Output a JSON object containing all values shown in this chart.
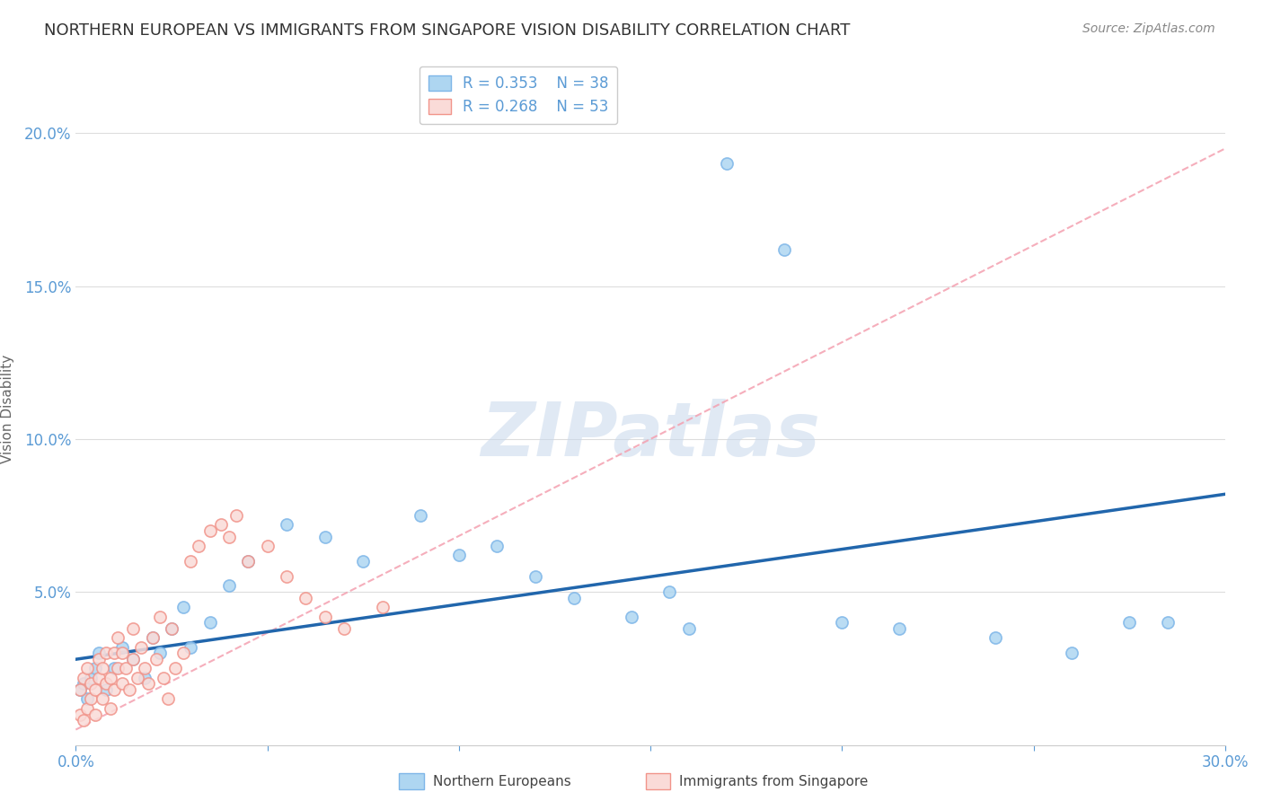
{
  "title": "NORTHERN EUROPEAN VS IMMIGRANTS FROM SINGAPORE VISION DISABILITY CORRELATION CHART",
  "source": "Source: ZipAtlas.com",
  "ylabel": "Vision Disability",
  "xlim": [
    0.0,
    0.3
  ],
  "ylim": [
    0.0,
    0.22
  ],
  "xticks": [
    0.0,
    0.05,
    0.1,
    0.15,
    0.2,
    0.25,
    0.3
  ],
  "yticks": [
    0.0,
    0.05,
    0.1,
    0.15,
    0.2
  ],
  "blue_R": 0.353,
  "blue_N": 38,
  "pink_R": 0.268,
  "pink_N": 53,
  "blue_scatter_color_face": "#AED6F1",
  "blue_scatter_color_edge": "#7EB6E8",
  "pink_scatter_color_face": "#FADBD8",
  "pink_scatter_color_edge": "#F1948A",
  "blue_line_color": "#2166AC",
  "pink_line_color": "#F4A0B0",
  "grid_color": "#DDDDDD",
  "background_color": "#FFFFFF",
  "title_fontsize": 13,
  "axis_label_fontsize": 11,
  "tick_fontsize": 12,
  "legend_fontsize": 12,
  "blue_scatter_x": [
    0.001,
    0.002,
    0.003,
    0.004,
    0.005,
    0.006,
    0.008,
    0.01,
    0.012,
    0.015,
    0.018,
    0.02,
    0.022,
    0.025,
    0.028,
    0.03,
    0.035,
    0.04,
    0.045,
    0.055,
    0.065,
    0.075,
    0.09,
    0.1,
    0.11,
    0.12,
    0.13,
    0.145,
    0.155,
    0.16,
    0.17,
    0.185,
    0.2,
    0.215,
    0.24,
    0.26,
    0.275,
    0.285
  ],
  "blue_scatter_y": [
    0.018,
    0.02,
    0.015,
    0.022,
    0.025,
    0.03,
    0.018,
    0.025,
    0.032,
    0.028,
    0.022,
    0.035,
    0.03,
    0.038,
    0.045,
    0.032,
    0.04,
    0.052,
    0.06,
    0.072,
    0.068,
    0.06,
    0.075,
    0.062,
    0.065,
    0.055,
    0.048,
    0.042,
    0.05,
    0.038,
    0.19,
    0.162,
    0.04,
    0.038,
    0.035,
    0.03,
    0.04,
    0.04
  ],
  "pink_scatter_x": [
    0.001,
    0.001,
    0.002,
    0.002,
    0.003,
    0.003,
    0.004,
    0.004,
    0.005,
    0.005,
    0.006,
    0.006,
    0.007,
    0.007,
    0.008,
    0.008,
    0.009,
    0.009,
    0.01,
    0.01,
    0.011,
    0.011,
    0.012,
    0.012,
    0.013,
    0.014,
    0.015,
    0.015,
    0.016,
    0.017,
    0.018,
    0.019,
    0.02,
    0.021,
    0.022,
    0.023,
    0.024,
    0.025,
    0.026,
    0.028,
    0.03,
    0.032,
    0.035,
    0.038,
    0.04,
    0.042,
    0.045,
    0.05,
    0.055,
    0.06,
    0.065,
    0.07,
    0.08
  ],
  "pink_scatter_y": [
    0.01,
    0.018,
    0.008,
    0.022,
    0.012,
    0.025,
    0.015,
    0.02,
    0.01,
    0.018,
    0.022,
    0.028,
    0.015,
    0.025,
    0.02,
    0.03,
    0.012,
    0.022,
    0.018,
    0.03,
    0.025,
    0.035,
    0.02,
    0.03,
    0.025,
    0.018,
    0.028,
    0.038,
    0.022,
    0.032,
    0.025,
    0.02,
    0.035,
    0.028,
    0.042,
    0.022,
    0.015,
    0.038,
    0.025,
    0.03,
    0.06,
    0.065,
    0.07,
    0.072,
    0.068,
    0.075,
    0.06,
    0.065,
    0.055,
    0.048,
    0.042,
    0.038,
    0.045
  ],
  "blue_line_x": [
    0.0,
    0.3
  ],
  "blue_line_y": [
    0.028,
    0.082
  ],
  "pink_line_x": [
    0.0,
    0.3
  ],
  "pink_line_y": [
    0.005,
    0.195
  ],
  "watermark_text": "ZIPatlas",
  "legend_label_blue": "R = 0.353    N = 38",
  "legend_label_pink": "R = 0.268    N = 53",
  "bottom_label_blue": "Northern Europeans",
  "bottom_label_pink": "Immigrants from Singapore"
}
